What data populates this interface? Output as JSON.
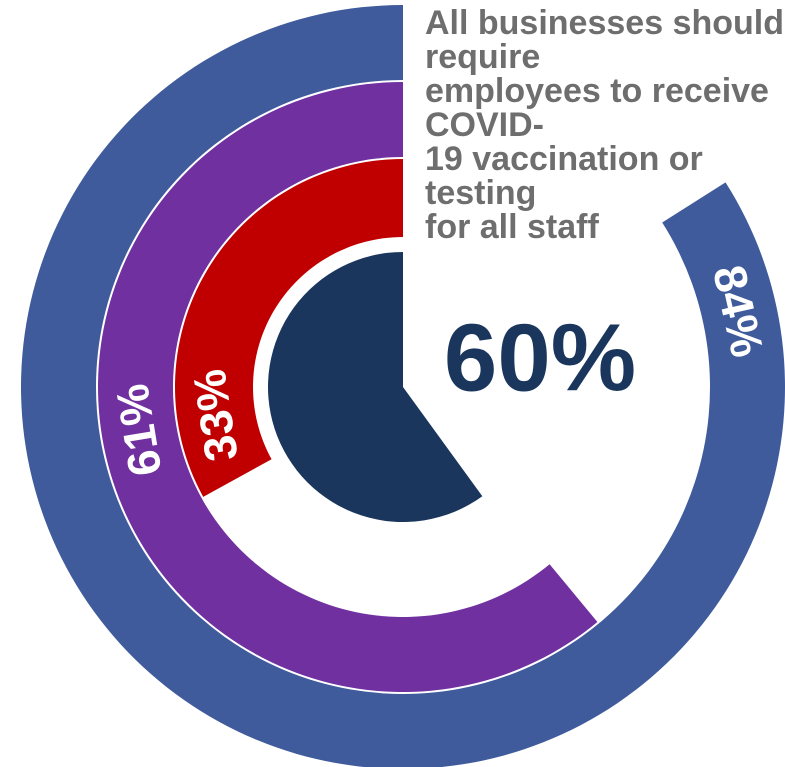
{
  "chart_data": {
    "type": "radial-bar",
    "title": "All businesses should require employees to receive COVID-19 vaccination or testing for all staff",
    "center_label": "60%",
    "series": [
      {
        "value": 84,
        "label": "84%",
        "color": "#3f5b9c"
      },
      {
        "value": 61,
        "label": "61%",
        "color": "#7030a0"
      },
      {
        "value": 33,
        "label": "33%",
        "color": "#c00000"
      },
      {
        "value": 60,
        "label": "60%",
        "color": "#1a365c"
      }
    ],
    "unit": "%"
  },
  "title_lines": "All businesses should require\nemployees to receive COVID-\n19 vaccination or testing\nfor all staff"
}
